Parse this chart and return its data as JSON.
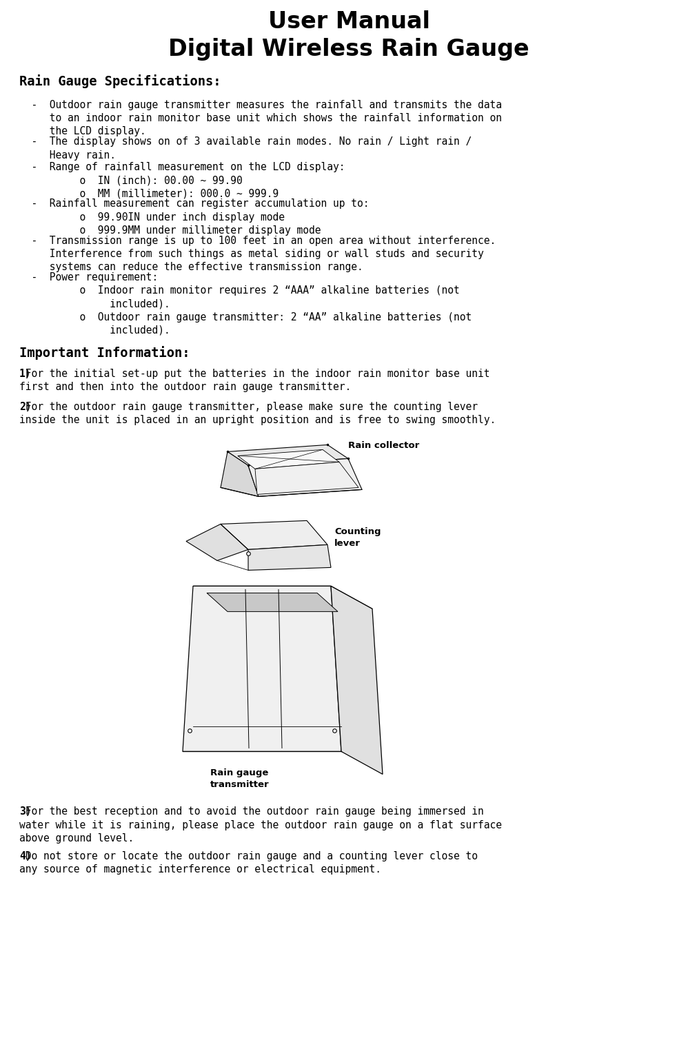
{
  "title_line1": "User Manual",
  "title_line2": "Digital Wireless Rain Gauge",
  "sec1_header": "Rain Gauge Specifications:",
  "bullets": [
    "  -  Outdoor rain gauge transmitter measures the rainfall and transmits the data\n     to an indoor rain monitor base unit which shows the rainfall information on\n     the LCD display.",
    "  -  The display shows on of 3 available rain modes. No rain / Light rain /\n     Heavy rain.",
    "  -  Range of rainfall measurement on the LCD display:\n          o  IN (inch): 00.00 ~ 99.90\n          o  MM (millimeter): 000.0 ~ 999.9",
    "  -  Rainfall measurement can register accumulation up to:\n          o  99.90IN under inch display mode\n          o  999.9MM under millimeter display mode",
    "  -  Transmission range is up to 100 feet in an open area without interference.\n     Interference from such things as metal siding or wall studs and security\n     systems can reduce the effective transmission range.",
    "  -  Power requirement:\n          o  Indoor rain monitor requires 2 “AAA” alkaline batteries (not\n               included).\n          o  Outdoor rain gauge transmitter: 2 “AA” alkaline batteries (not\n               included)."
  ],
  "sec2_header": "Important Information:",
  "items": [
    {
      "num": "1)",
      "text": " For the initial set-up put the batteries in the indoor rain monitor base unit\nfirst and then into the outdoor rain gauge transmitter."
    },
    {
      "num": "2)",
      "text": " For the outdoor rain gauge transmitter, please make sure the counting lever\ninside the unit is placed in an upright position and is free to swing smoothly."
    },
    {
      "num": "3)",
      "text": " For the best reception and to avoid the outdoor rain gauge being immersed in\nwater while it is raining, please place the outdoor rain gauge on a flat surface\nabove ground level."
    },
    {
      "num": "4)",
      "text": " Do not store or locate the outdoor rain gauge and a counting lever close to\nany source of magnetic interference or electrical equipment."
    }
  ],
  "label_rain_collector": "Rain collector",
  "label_counting_lever": "Counting\nlever",
  "label_rain_gauge": "Rain gauge\ntransmitter",
  "bg": "#ffffff",
  "fg": "#000000"
}
